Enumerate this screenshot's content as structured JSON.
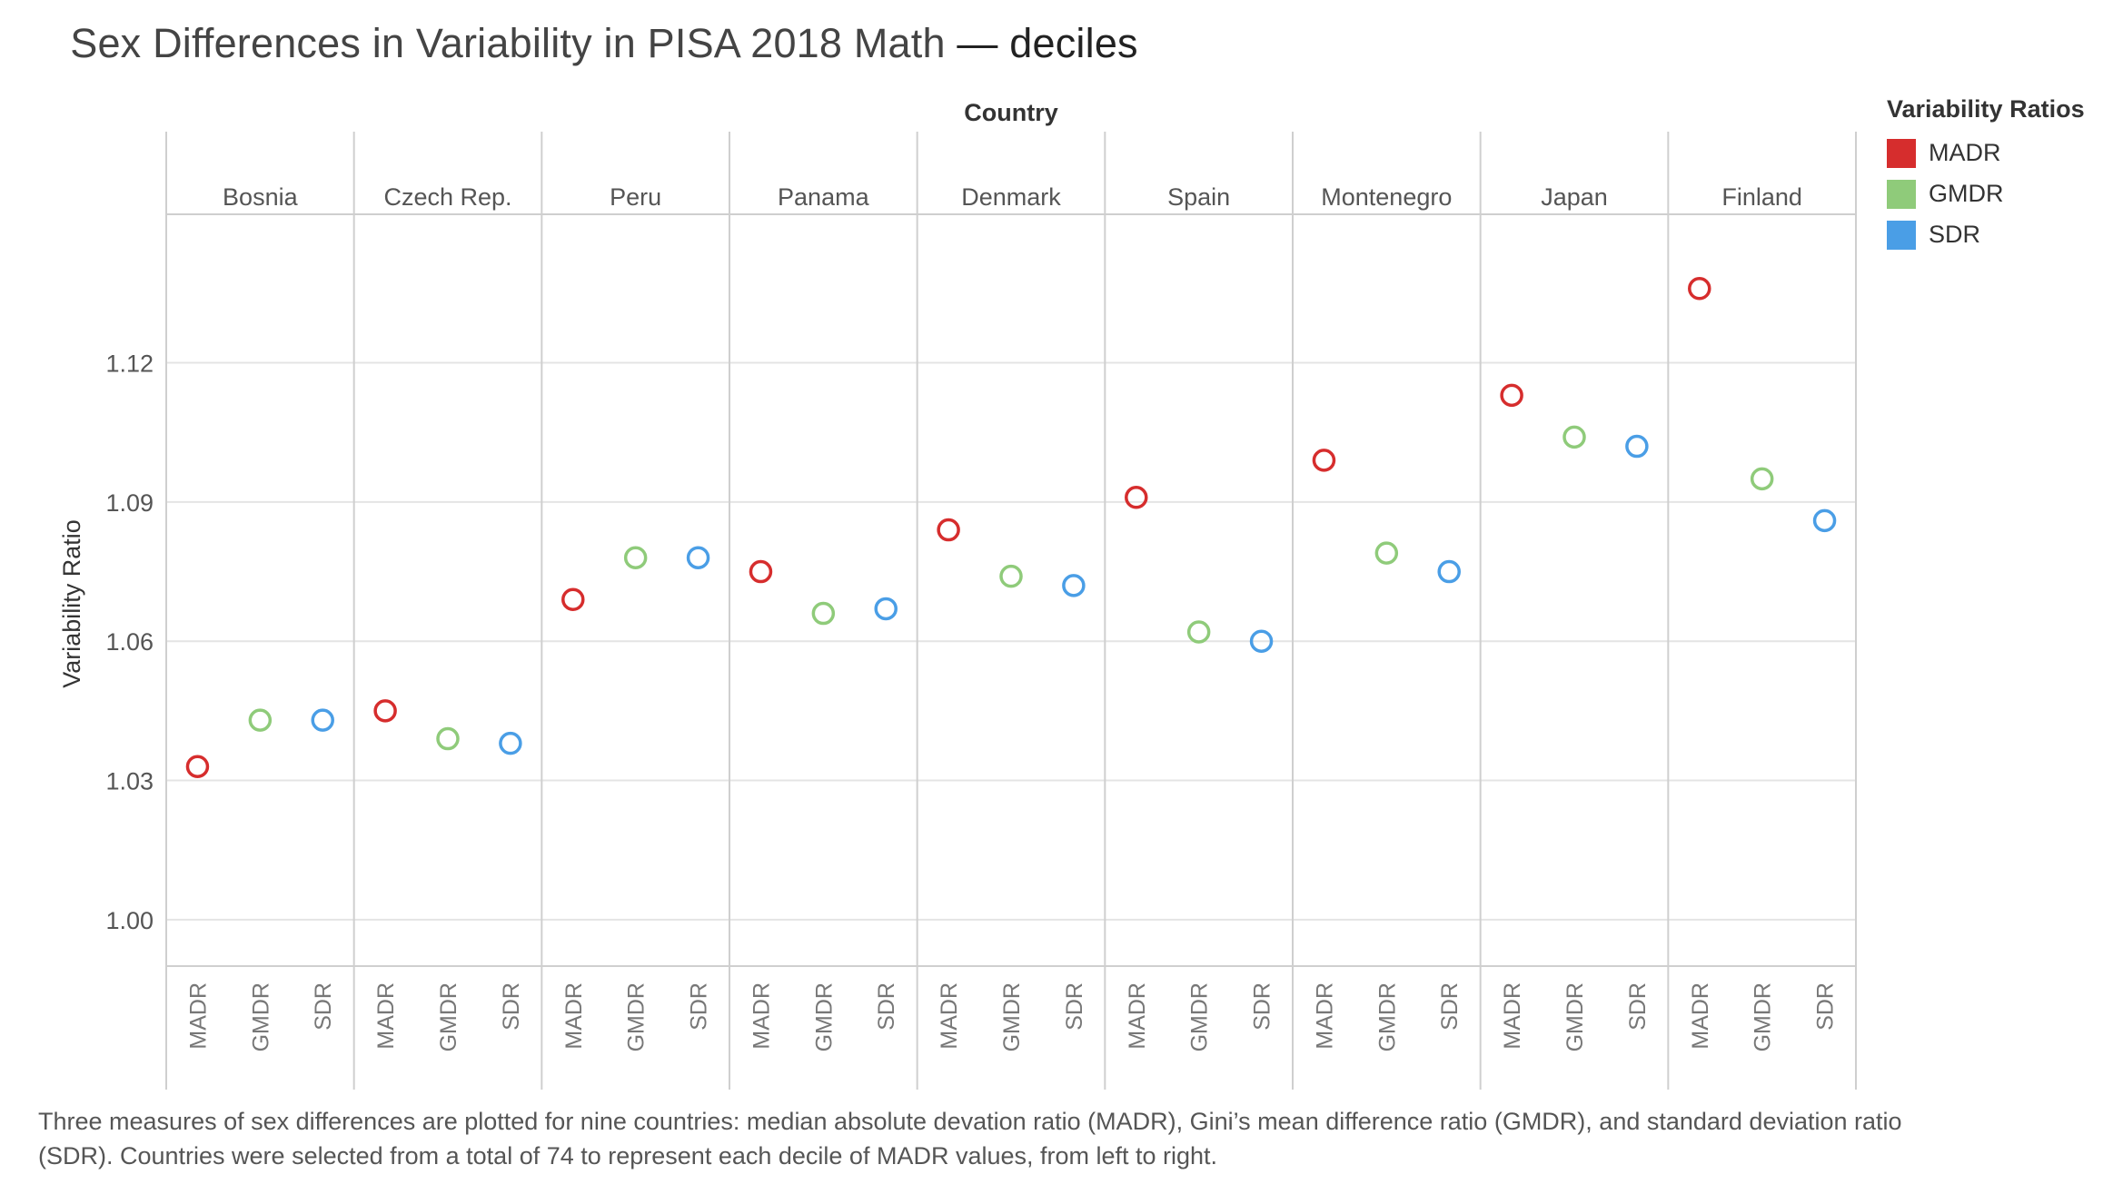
{
  "title_main": "Sex Differences in Variability in PISA 2018 Math",
  "title_tail": "— deciles",
  "chart_data": {
    "type": "scatter",
    "title": "Sex Differences in Variability in PISA 2018 Math — deciles",
    "column_header": "Country",
    "ylabel": "Variability Ratio",
    "ylim": [
      0.99,
      1.152
    ],
    "yticks": [
      1.0,
      1.03,
      1.06,
      1.09,
      1.12
    ],
    "ytick_labels": [
      "1.00",
      "1.03",
      "1.06",
      "1.09",
      "1.12"
    ],
    "grid": true,
    "measures": [
      "MADR",
      "GMDR",
      "SDR"
    ],
    "countries": [
      "Bosnia",
      "Czech Rep.",
      "Peru",
      "Panama",
      "Denmark",
      "Spain",
      "Montenegro",
      "Japan",
      "Finland"
    ],
    "series": [
      {
        "name": "MADR",
        "color": "#d62d2d",
        "values": [
          1.033,
          1.045,
          1.069,
          1.075,
          1.084,
          1.091,
          1.099,
          1.113,
          1.136
        ]
      },
      {
        "name": "GMDR",
        "color": "#8fcb7a",
        "values": [
          1.043,
          1.039,
          1.078,
          1.066,
          1.074,
          1.062,
          1.079,
          1.104,
          1.095
        ]
      },
      {
        "name": "SDR",
        "color": "#4a9ee6",
        "values": [
          1.043,
          1.038,
          1.078,
          1.067,
          1.072,
          1.06,
          1.075,
          1.102,
          1.086
        ]
      }
    ],
    "legend": {
      "title": "Variability Ratios",
      "placement": "top-right"
    }
  },
  "caption": "Three measures of sex differences are plotted for nine countries: median absolute devation ratio (MADR), Gini’s mean difference ratio (GMDR), and standard deviation ratio (SDR). Countries were selected from a total of 74 to represent each decile of MADR values, from left to right."
}
